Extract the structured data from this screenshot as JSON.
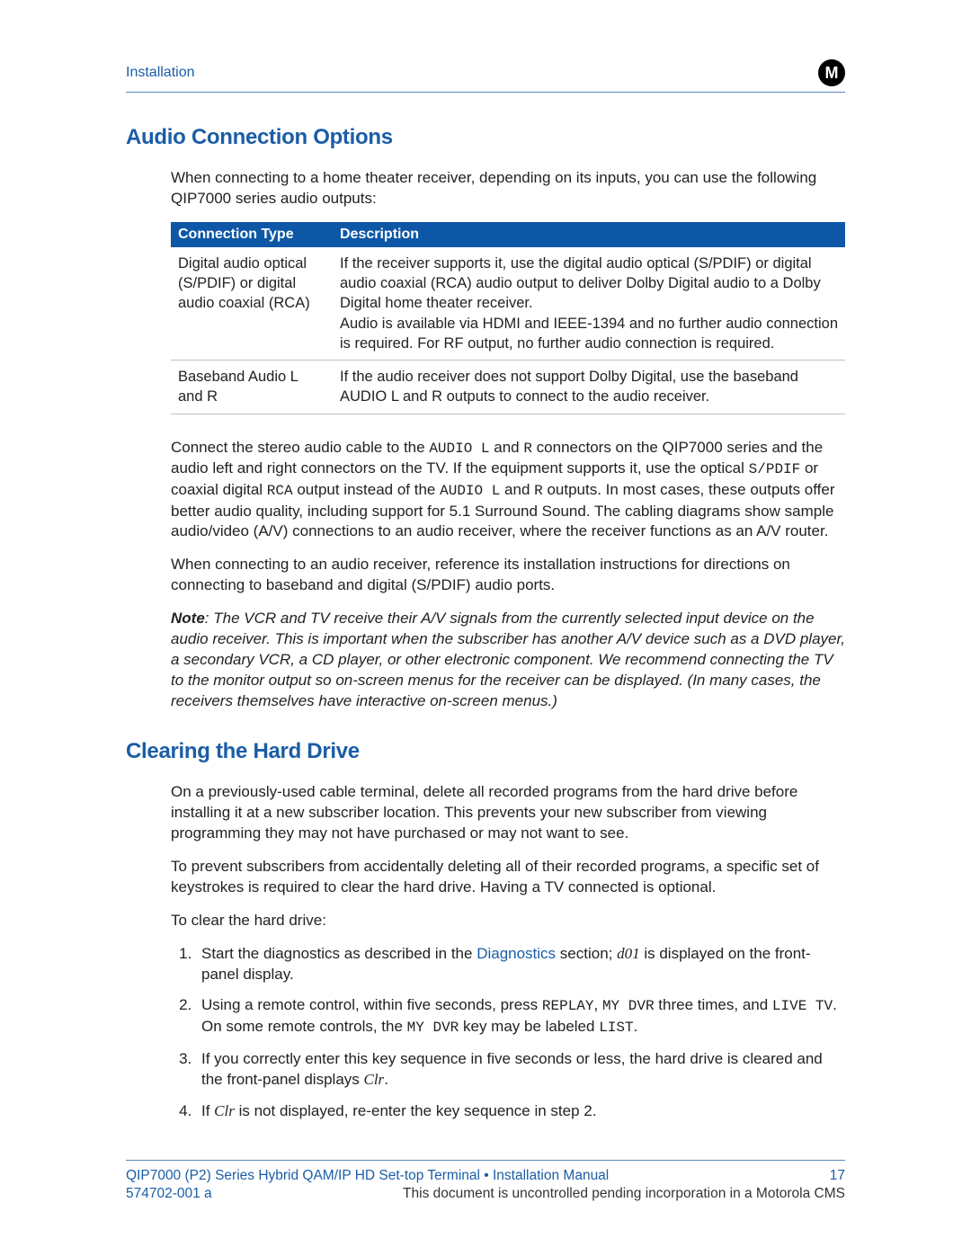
{
  "colors": {
    "link_blue": "#1b5da6",
    "header_bg": "#0d57a6",
    "rule": "#5b8ab8",
    "row_border": "#bfbfbf",
    "text": "#222222",
    "white": "#ffffff",
    "black": "#000000"
  },
  "header": {
    "breadcrumb": "Installation",
    "logo_letter": "M"
  },
  "section1": {
    "title": "Audio Connection Options",
    "intro": "When connecting to a home theater receiver, depending on its inputs, you can use the following QIP7000 series audio outputs:",
    "table": {
      "columns": [
        "Connection Type",
        "Description"
      ],
      "rows": [
        {
          "type": "Digital audio optical (S/PDIF) or digital audio coaxial (RCA)",
          "desc": "If the receiver supports it, use the digital audio optical (S/PDIF) or digital audio coaxial (RCA) audio output to deliver Dolby Digital audio to a Dolby Digital home theater receiver.\nAudio is available via HDMI and IEEE-1394 and no further audio connection is required. For RF output, no further audio connection is required."
        },
        {
          "type": "Baseband Audio L and R",
          "desc": "If the audio receiver does not support Dolby Digital, use the baseband AUDIO L and R outputs to connect to the audio receiver."
        }
      ]
    },
    "para1": {
      "pre": "Connect the stereo audio cable to the ",
      "mono1": "AUDIO L",
      "mid1": " and ",
      "mono2": "R",
      "mid2": " connectors on the QIP7000 series and the audio left and right connectors on the TV. If the equipment supports it, use the optical ",
      "mono3": "S/PDIF",
      "mid3": " or coaxial digital ",
      "mono4": "RCA",
      "mid4": " output instead of the ",
      "mono5": "AUDIO L",
      "mid5": " and ",
      "mono6": "R",
      "post": " outputs. In most cases, these outputs offer better audio quality, including support for 5.1 Surround Sound. The cabling diagrams show sample audio/video (A/V) connections to an audio receiver, where the receiver functions as an A/V router."
    },
    "para2": "When connecting to an audio receiver, reference its installation instructions for directions on connecting to baseband and digital (S/PDIF) audio ports.",
    "note_label": "Note",
    "note_body": ": The VCR and TV receive their A/V signals from the currently selected input device on the audio receiver. This is important when the subscriber has another A/V device such as a DVD player, a secondary VCR, a CD player, or other electronic component. We recommend connecting the TV to the monitor output so on-screen menus for the receiver can be displayed. (In many cases, the receivers themselves have interactive on-screen menus.)"
  },
  "section2": {
    "title": "Clearing the Hard Drive",
    "para1": "On a previously-used cable terminal, delete all recorded programs from the hard drive before installing it at a new subscriber location. This prevents your new subscriber from viewing programming they may not have purchased or may not want to see.",
    "para2": "To prevent subscribers from accidentally deleting all of their recorded programs, a specific set of keystrokes is required to clear the hard drive. Having a TV connected is optional.",
    "para3": "To clear the hard drive:",
    "steps": {
      "s1": {
        "pre": "Start the diagnostics as described in the ",
        "link": "Diagnostics",
        "mid": " section; ",
        "em": "d01",
        "post": " is displayed on the front-panel display."
      },
      "s2": {
        "pre": "Using a remote control, within five seconds, press ",
        "m1": "REPLAY",
        "t1": ", ",
        "m2": "MY DVR",
        "t2": " three times, and ",
        "m3": "LIVE TV",
        "t3": ". On some remote controls, the ",
        "m4": "MY DVR",
        "t4": " key may be labeled ",
        "m5": "LIST",
        "t5": "."
      },
      "s3": {
        "pre": "If you correctly enter this key sequence in five seconds or less, the hard drive is cleared and the front-panel displays ",
        "em": "Clr",
        "post": "."
      },
      "s4": {
        "pre": "If ",
        "em": "Clr",
        "post": " is not displayed, re-enter the key sequence in step 2."
      }
    }
  },
  "footer": {
    "doc_title": "QIP7000 (P2) Series Hybrid QAM/IP HD Set-top Terminal  •  Installation Manual",
    "page_number": "17",
    "doc_number": "574702-001 a",
    "disclaimer": "This document is uncontrolled pending incorporation in a Motorola CMS"
  }
}
